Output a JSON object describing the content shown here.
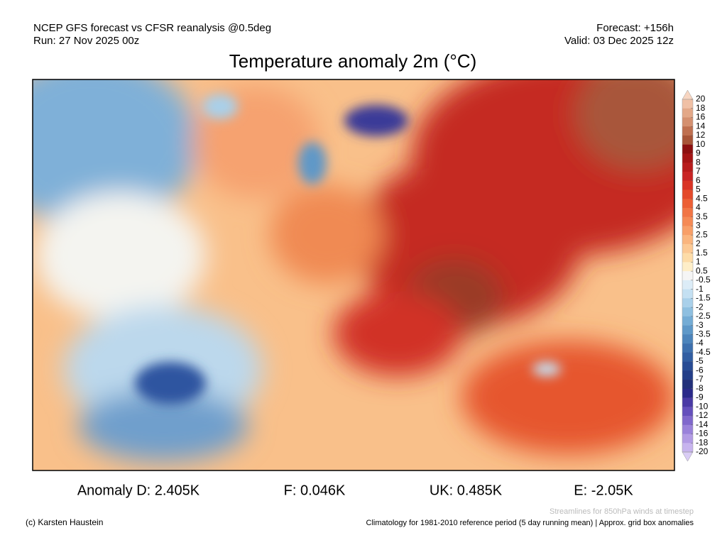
{
  "header": {
    "model": "NCEP GFS forecast vs CFSR reanalysis @0.5deg",
    "run": "Run: 27 Nov 2025 00z",
    "forecast": "Forecast: +156h",
    "valid": "Valid: 03 Dec 2025 12z",
    "title": "Temperature anomaly 2m (°C)"
  },
  "colorbar": {
    "labels": [
      20,
      18,
      16,
      14,
      12,
      10,
      9,
      8,
      7,
      6,
      5,
      4.5,
      4,
      3.5,
      3,
      2.5,
      2,
      1.5,
      1,
      0.5,
      -0.5,
      -1,
      -1.5,
      -2,
      -2.5,
      -3,
      -3.5,
      -4,
      -4.5,
      -5,
      -6,
      -7,
      -8,
      -9,
      -10,
      -12,
      -14,
      -16,
      -18,
      -20
    ],
    "colors": [
      "#f7d5c1",
      "#f0c0a5",
      "#e3a888",
      "#d49070",
      "#bf7050",
      "#a85538",
      "#8c1010",
      "#a51515",
      "#b81c1c",
      "#c92525",
      "#d93425",
      "#e44a2b",
      "#ec5f35",
      "#f17545",
      "#f58a55",
      "#f89f68",
      "#fab57e",
      "#fcc994",
      "#fddca8",
      "#feeec8",
      "#f5f5f5",
      "#dcecf7",
      "#c4e0f2",
      "#a9d0ea",
      "#8ebfe0",
      "#74acd5",
      "#5e98c8",
      "#4c84bb",
      "#3d70ae",
      "#315ea2",
      "#284c95",
      "#233e88",
      "#22307a",
      "#2b2a8a",
      "#4a3aa5",
      "#6550bc",
      "#8068cc",
      "#9a82da",
      "#b29be4",
      "#c7b4ee",
      "#d9ccf5"
    ]
  },
  "stats": [
    "Anomaly D: 2.405K",
    "F: 0.046K",
    "UK: 0.485K",
    "E: -2.05K"
  ],
  "footer": {
    "streamlines": "Streamlines for 850hPa winds at timestep",
    "copyright": "(c) Karsten Haustein",
    "climatology": "Climatology for 1981-2010 reference period (5 day running mean) | Approx. grid box anomalies"
  }
}
